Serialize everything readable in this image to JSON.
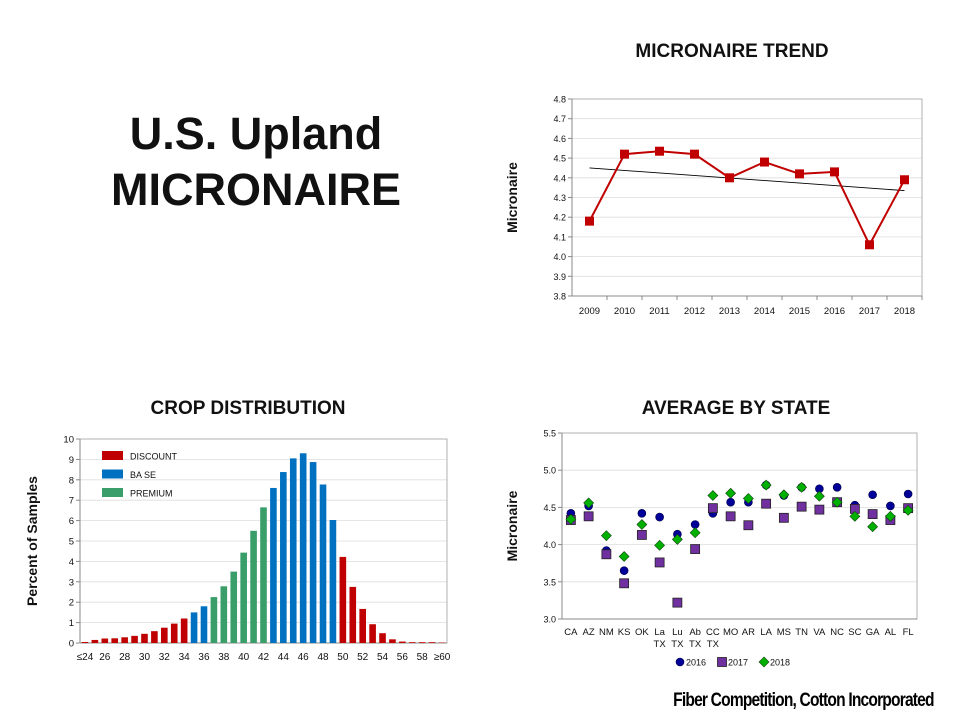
{
  "slide": {
    "title_line1": "U.S. Upland",
    "title_line2": "MICRONAIRE",
    "footer": "Fiber Competition, Cotton Incorporated"
  },
  "chart_data": [
    {
      "id": "trend",
      "type": "line",
      "title": "MICRONAIRE TREND",
      "ylabel": "Micronaire",
      "xlabel": "",
      "categories": [
        "2009",
        "2010",
        "2011",
        "2012",
        "2013",
        "2014",
        "2015",
        "2016",
        "2017",
        "2018"
      ],
      "values": [
        4.18,
        4.52,
        4.535,
        4.52,
        4.4,
        4.48,
        4.42,
        4.43,
        4.06,
        4.39
      ],
      "trendline": {
        "start": 4.45,
        "end": 4.335,
        "color": "#000000"
      },
      "ylim": [
        3.8,
        4.8
      ],
      "yticks": [
        "3.8",
        "3.9",
        "4.0",
        "4.1",
        "4.2",
        "4.3",
        "4.4",
        "4.5",
        "4.6",
        "4.7",
        "4.8"
      ],
      "color": "#c00000",
      "grid": true
    },
    {
      "id": "crop",
      "type": "bar",
      "title": "CROP DISTRIBUTION",
      "ylabel": "Percent of Samples",
      "xlabel": "",
      "categories": [
        "≤24",
        "25",
        "26",
        "27",
        "28",
        "29",
        "30",
        "31",
        "32",
        "33",
        "34",
        "35",
        "36",
        "37",
        "38",
        "39",
        "40",
        "41",
        "42",
        "43",
        "44",
        "45",
        "46",
        "47",
        "48",
        "49",
        "50",
        "51",
        "52",
        "53",
        "54",
        "55",
        "56",
        "57",
        "58",
        "59",
        "≥60"
      ],
      "xtick_labels": [
        "≤24",
        "26",
        "28",
        "30",
        "32",
        "34",
        "36",
        "38",
        "40",
        "42",
        "44",
        "46",
        "48",
        "50",
        "52",
        "54",
        "56",
        "58",
        "≥60"
      ],
      "values": [
        0.05,
        0.15,
        0.22,
        0.23,
        0.28,
        0.35,
        0.45,
        0.58,
        0.75,
        0.95,
        1.2,
        1.5,
        1.8,
        2.25,
        2.78,
        3.5,
        4.43,
        5.5,
        6.65,
        7.6,
        8.38,
        9.05,
        9.3,
        8.87,
        7.77,
        6.03,
        4.22,
        2.75,
        1.67,
        0.92,
        0.48,
        0.18,
        0.07,
        0.04,
        0.04,
        0.04,
        0.02
      ],
      "classes": [
        "D",
        "D",
        "D",
        "D",
        "D",
        "D",
        "D",
        "D",
        "D",
        "D",
        "D",
        "B",
        "B",
        "P",
        "P",
        "P",
        "P",
        "P",
        "P",
        "B",
        "B",
        "B",
        "B",
        "B",
        "B",
        "B",
        "D",
        "D",
        "D",
        "D",
        "D",
        "D",
        "D",
        "D",
        "D",
        "D",
        "D"
      ],
      "legend": [
        {
          "key": "D",
          "name": "DISCOUNT",
          "color": "#c00000"
        },
        {
          "key": "B",
          "name": "BA SE",
          "color": "#0070c0"
        },
        {
          "key": "P",
          "name": "PREMIUM",
          "color": "#3a9e6a"
        }
      ],
      "legend_position": "top-left",
      "ylim": [
        0,
        10
      ],
      "yticks": [
        "0",
        "1",
        "2",
        "3",
        "4",
        "5",
        "6",
        "7",
        "8",
        "9",
        "10"
      ],
      "grid": true
    },
    {
      "id": "state",
      "type": "scatter",
      "title": "AVERAGE BY STATE",
      "ylabel": "Micronaire",
      "xlabel": "",
      "categories": [
        [
          "CA"
        ],
        [
          "AZ"
        ],
        [
          "NM"
        ],
        [
          "KS"
        ],
        [
          "OK"
        ],
        [
          "La",
          "TX"
        ],
        [
          "Lu",
          "TX"
        ],
        [
          "Ab",
          "TX"
        ],
        [
          "CC",
          "TX"
        ],
        [
          "MO"
        ],
        [
          "AR"
        ],
        [
          "LA"
        ],
        [
          "MS"
        ],
        [
          "TN"
        ],
        [
          "VA"
        ],
        [
          "NC"
        ],
        [
          "SC"
        ],
        [
          "GA"
        ],
        [
          "AL"
        ],
        [
          "FL"
        ]
      ],
      "series": [
        {
          "name": "2016",
          "marker": "circle",
          "color": "#000099",
          "values": [
            4.42,
            4.52,
            3.92,
            3.65,
            4.42,
            4.37,
            4.14,
            4.27,
            4.42,
            4.57,
            4.57,
            4.8,
            4.66,
            4.77,
            4.75,
            4.77,
            4.53,
            4.67,
            4.52,
            4.68
          ]
        },
        {
          "name": "2017",
          "marker": "square",
          "color": "#7030a0",
          "values": [
            4.33,
            4.38,
            3.87,
            3.48,
            4.13,
            3.76,
            3.22,
            3.94,
            4.49,
            4.38,
            4.26,
            4.55,
            4.36,
            4.51,
            4.47,
            4.57,
            4.48,
            4.41,
            4.33,
            4.49
          ]
        },
        {
          "name": "2018",
          "marker": "diamond",
          "color": "#00b000",
          "values": [
            4.34,
            4.56,
            4.12,
            3.84,
            4.27,
            3.99,
            4.07,
            4.16,
            4.66,
            4.69,
            4.62,
            4.8,
            4.67,
            4.77,
            4.65,
            4.57,
            4.38,
            4.24,
            4.38,
            4.46
          ]
        }
      ],
      "legend_position": "bottom",
      "ylim": [
        3.0,
        5.5
      ],
      "yticks": [
        "3.0",
        "3.5",
        "4.0",
        "4.5",
        "5.0",
        "5.5"
      ],
      "grid": true
    }
  ]
}
